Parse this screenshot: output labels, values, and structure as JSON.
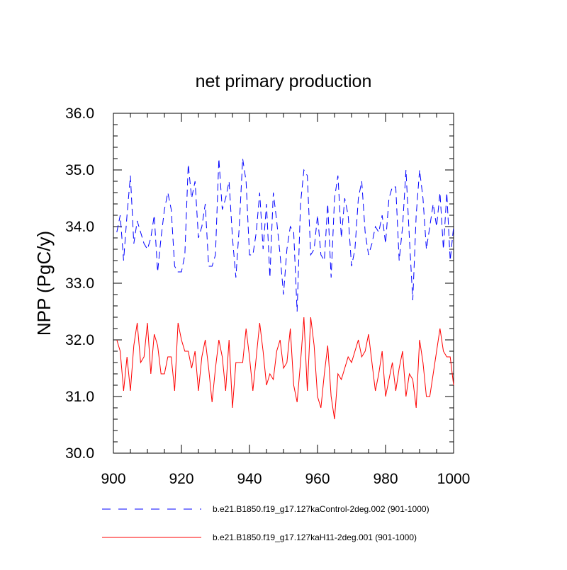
{
  "chart_data": {
    "type": "line",
    "title": "net primary production",
    "xlabel": "",
    "ylabel": "NPP  (PgC/y)",
    "xlim": [
      900,
      1000
    ],
    "ylim": [
      30,
      36
    ],
    "x_ticks": [
      900,
      920,
      940,
      960,
      980,
      1000
    ],
    "x_tick_labels": [
      "900",
      "920",
      "940",
      "960",
      "980",
      "1000"
    ],
    "y_ticks": [
      30,
      31,
      32,
      33,
      34,
      35,
      36
    ],
    "y_tick_labels": [
      "30.0",
      "31.0",
      "32.0",
      "33.0",
      "34.0",
      "35.0",
      "36.0"
    ],
    "grid": false,
    "legend_position": "bottom",
    "series": [
      {
        "name": "b.e21.B1850.f19_g17.127kaControl-2deg.002 (901-1000)",
        "color": "#0000ff",
        "style": "dashed",
        "x": [
          901,
          902,
          903,
          904,
          905,
          906,
          907,
          908,
          909,
          910,
          911,
          912,
          913,
          914,
          915,
          916,
          917,
          918,
          919,
          920,
          921,
          922,
          923,
          924,
          925,
          926,
          927,
          928,
          929,
          930,
          931,
          932,
          933,
          934,
          935,
          936,
          937,
          938,
          939,
          940,
          941,
          942,
          943,
          944,
          945,
          946,
          947,
          948,
          949,
          950,
          951,
          952,
          953,
          954,
          955,
          956,
          957,
          958,
          959,
          960,
          961,
          962,
          963,
          964,
          965,
          966,
          967,
          968,
          969,
          970,
          971,
          972,
          973,
          974,
          975,
          976,
          977,
          978,
          979,
          980,
          981,
          982,
          983,
          984,
          985,
          986,
          987,
          988,
          989,
          990,
          991,
          992,
          993,
          994,
          995,
          996,
          997,
          998,
          999,
          1000
        ],
        "values": [
          33.9,
          34.2,
          33.4,
          34.2,
          34.9,
          33.7,
          34.1,
          33.9,
          33.7,
          33.6,
          33.8,
          34.2,
          33.2,
          33.8,
          34.3,
          34.6,
          34.3,
          33.3,
          33.2,
          33.2,
          33.5,
          35.1,
          34.5,
          34.8,
          33.8,
          34.0,
          34.4,
          33.3,
          33.3,
          33.5,
          35.2,
          34.3,
          34.5,
          34.8,
          33.8,
          33.1,
          34.0,
          35.2,
          34.8,
          33.5,
          33.5,
          33.9,
          34.6,
          33.6,
          34.4,
          33.1,
          34.6,
          34.1,
          33.5,
          32.8,
          33.6,
          34.0,
          33.9,
          32.5,
          34.4,
          35.0,
          34.9,
          33.5,
          33.6,
          34.2,
          33.5,
          33.4,
          34.4,
          33.1,
          34.5,
          34.9,
          33.8,
          34.5,
          34.2,
          33.3,
          33.6,
          34.5,
          34.8,
          33.9,
          33.5,
          33.7,
          34.0,
          33.9,
          34.2,
          33.7,
          34.5,
          34.7,
          34.7,
          33.4,
          34.0,
          35.0,
          33.8,
          32.7,
          34.2,
          35.0,
          34.5,
          33.6,
          34.0,
          34.4,
          34.0,
          34.6,
          33.6,
          34.6,
          33.4,
          34.0
        ]
      },
      {
        "name": "b.e21.B1850.f19_g17.127kaH11-2deg.001 (901-1000)",
        "color": "#ff0000",
        "style": "solid",
        "x": [
          901,
          902,
          903,
          904,
          905,
          906,
          907,
          908,
          909,
          910,
          911,
          912,
          913,
          914,
          915,
          916,
          917,
          918,
          919,
          920,
          921,
          922,
          923,
          924,
          925,
          926,
          927,
          928,
          929,
          930,
          931,
          932,
          933,
          934,
          935,
          936,
          937,
          938,
          939,
          940,
          941,
          942,
          943,
          944,
          945,
          946,
          947,
          948,
          949,
          950,
          951,
          952,
          953,
          954,
          955,
          956,
          957,
          958,
          959,
          960,
          961,
          962,
          963,
          964,
          965,
          966,
          967,
          968,
          969,
          970,
          971,
          972,
          973,
          974,
          975,
          976,
          977,
          978,
          979,
          980,
          981,
          982,
          983,
          984,
          985,
          986,
          987,
          988,
          989,
          990,
          991,
          992,
          993,
          994,
          995,
          996,
          997,
          998,
          999,
          1000
        ],
        "values": [
          32.0,
          31.8,
          31.1,
          31.7,
          31.1,
          31.9,
          32.3,
          31.6,
          31.7,
          32.3,
          31.4,
          32.1,
          31.9,
          31.4,
          31.4,
          31.7,
          31.7,
          31.1,
          32.3,
          32.0,
          31.8,
          31.8,
          31.5,
          31.8,
          31.1,
          31.7,
          32.0,
          31.5,
          30.9,
          31.5,
          32.0,
          31.7,
          31.1,
          32.0,
          30.8,
          31.6,
          31.6,
          31.6,
          32.2,
          31.7,
          31.1,
          31.7,
          32.3,
          31.8,
          31.2,
          31.4,
          31.3,
          31.8,
          32.0,
          31.5,
          31.6,
          32.2,
          31.2,
          30.9,
          31.6,
          32.4,
          31.1,
          32.4,
          31.9,
          31.0,
          30.8,
          31.4,
          31.9,
          31.0,
          30.6,
          31.4,
          31.3,
          31.5,
          31.7,
          31.6,
          31.8,
          32.0,
          31.7,
          31.8,
          32.1,
          31.6,
          31.1,
          31.4,
          31.8,
          31.0,
          31.3,
          31.6,
          31.1,
          31.5,
          31.8,
          31.0,
          31.4,
          31.3,
          30.8,
          32.0,
          31.6,
          31.0,
          31.0,
          31.4,
          31.8,
          32.2,
          31.8,
          31.7,
          31.7,
          31.2
        ]
      }
    ]
  }
}
